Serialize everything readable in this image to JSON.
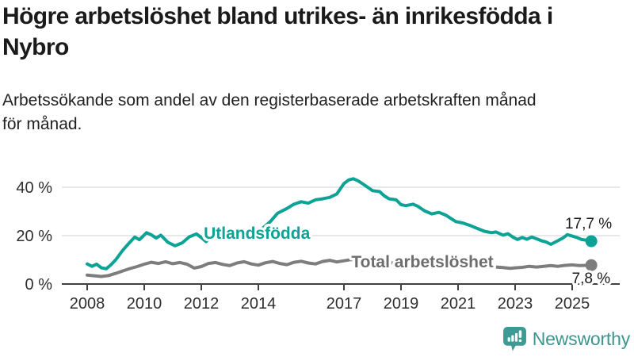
{
  "header": {
    "title": "Högre arbetslöshet bland utrikes- än inrikesfödda i\nNybro",
    "subtitle": "Arbetssökande som andel av den registerbaserade arbetskraften månad\nför månad."
  },
  "footer": {
    "brand": "Newsworthy"
  },
  "colors": {
    "accent_teal": "#0da296",
    "line_gray": "#7d7d7d",
    "label_gray": "#6d6d6d",
    "grid": "#d9d9d9",
    "axis": "#404040",
    "axis_text": "#2e2e2e",
    "value_text": "#1a1a1a",
    "logo_teal": "#3e9a94"
  },
  "chart_data": {
    "type": "line",
    "title": "Högre arbetslöshet bland utrikes- än inrikesfödda i Nybro",
    "subtitle": "Arbetssökande som andel av den registerbaserade arbetskraften månad för månad.",
    "ylabel": "",
    "xlabel": "",
    "y_ticks": [
      0,
      20,
      40
    ],
    "y_tick_suffix": " %",
    "x_ticks": [
      2008,
      2010,
      2012,
      2014,
      2017,
      2019,
      2021,
      2023,
      2025
    ],
    "xlim": [
      2007.1,
      2026.7
    ],
    "ylim": [
      0,
      46
    ],
    "grid": "horizontal",
    "legend_position": "inline-labels",
    "series": [
      {
        "name": "Utlandsfödda",
        "color": "#0da296",
        "end_label": "17,7 %",
        "end_value": 17.7,
        "label_anchor": {
          "year": 2013.95,
          "value": 21.0
        },
        "end_label_offset": {
          "dx": 26,
          "dy": -16
        },
        "points": [
          [
            2008.0,
            8.3
          ],
          [
            2008.17,
            7.3
          ],
          [
            2008.33,
            8.2
          ],
          [
            2008.5,
            6.7
          ],
          [
            2008.67,
            6.3
          ],
          [
            2008.83,
            7.9
          ],
          [
            2009.0,
            10.0
          ],
          [
            2009.25,
            14.0
          ],
          [
            2009.5,
            17.3
          ],
          [
            2009.67,
            19.4
          ],
          [
            2009.83,
            18.3
          ],
          [
            2010.08,
            21.2
          ],
          [
            2010.25,
            20.3
          ],
          [
            2010.42,
            19.0
          ],
          [
            2010.58,
            20.2
          ],
          [
            2010.83,
            17.2
          ],
          [
            2011.08,
            15.8
          ],
          [
            2011.33,
            17.0
          ],
          [
            2011.58,
            19.5
          ],
          [
            2011.83,
            20.7
          ],
          [
            2012.0,
            19.2
          ],
          [
            2012.17,
            17.5
          ],
          [
            2012.42,
            20.4
          ],
          [
            2012.67,
            21.0
          ],
          [
            2012.92,
            20.4
          ],
          [
            2013.17,
            21.2
          ],
          [
            2013.42,
            20.7
          ],
          [
            2013.67,
            21.3
          ],
          [
            2013.92,
            21.8
          ],
          [
            2014.17,
            23.2
          ],
          [
            2014.42,
            25.8
          ],
          [
            2014.67,
            29.2
          ],
          [
            2015.0,
            31.2
          ],
          [
            2015.25,
            33.0
          ],
          [
            2015.5,
            34.0
          ],
          [
            2015.75,
            33.4
          ],
          [
            2016.0,
            34.8
          ],
          [
            2016.25,
            35.2
          ],
          [
            2016.5,
            35.8
          ],
          [
            2016.75,
            37.2
          ],
          [
            2017.0,
            41.5
          ],
          [
            2017.17,
            43.0
          ],
          [
            2017.33,
            43.5
          ],
          [
            2017.5,
            42.6
          ],
          [
            2017.67,
            41.3
          ],
          [
            2017.83,
            40.0
          ],
          [
            2018.0,
            38.6
          ],
          [
            2018.25,
            38.2
          ],
          [
            2018.42,
            36.4
          ],
          [
            2018.58,
            35.2
          ],
          [
            2018.83,
            34.8
          ],
          [
            2019.0,
            32.8
          ],
          [
            2019.17,
            32.4
          ],
          [
            2019.42,
            33.0
          ],
          [
            2019.58,
            32.2
          ],
          [
            2019.83,
            30.2
          ],
          [
            2020.08,
            29.0
          ],
          [
            2020.33,
            29.6
          ],
          [
            2020.58,
            28.4
          ],
          [
            2020.92,
            25.8
          ],
          [
            2021.17,
            25.2
          ],
          [
            2021.42,
            24.2
          ],
          [
            2021.67,
            23.0
          ],
          [
            2021.92,
            21.8
          ],
          [
            2022.17,
            21.2
          ],
          [
            2022.33,
            21.5
          ],
          [
            2022.58,
            20.2
          ],
          [
            2022.75,
            20.8
          ],
          [
            2022.92,
            19.4
          ],
          [
            2023.08,
            18.4
          ],
          [
            2023.25,
            19.2
          ],
          [
            2023.42,
            18.5
          ],
          [
            2023.58,
            19.4
          ],
          [
            2023.75,
            18.7
          ],
          [
            2023.92,
            17.9
          ],
          [
            2024.08,
            17.4
          ],
          [
            2024.25,
            16.4
          ],
          [
            2024.5,
            17.9
          ],
          [
            2024.67,
            19.0
          ],
          [
            2024.83,
            20.4
          ],
          [
            2025.0,
            19.8
          ],
          [
            2025.17,
            19.2
          ],
          [
            2025.33,
            18.4
          ],
          [
            2025.5,
            18.1
          ],
          [
            2025.67,
            17.7
          ]
        ]
      },
      {
        "name": "Total arbetslöshet",
        "color": "#7d7d7d",
        "label_color": "#6d6d6d",
        "end_label": "7,8 %",
        "end_value": 7.8,
        "label_anchor": {
          "year": 2019.75,
          "value": 9.2
        },
        "end_label_offset": {
          "dx": 24,
          "dy": 23
        },
        "points": [
          [
            2008.0,
            3.7
          ],
          [
            2008.25,
            3.4
          ],
          [
            2008.5,
            3.1
          ],
          [
            2008.75,
            3.5
          ],
          [
            2009.0,
            4.4
          ],
          [
            2009.25,
            5.4
          ],
          [
            2009.5,
            6.4
          ],
          [
            2009.75,
            7.2
          ],
          [
            2010.0,
            8.2
          ],
          [
            2010.25,
            9.0
          ],
          [
            2010.5,
            8.5
          ],
          [
            2010.75,
            9.2
          ],
          [
            2011.0,
            8.4
          ],
          [
            2011.25,
            8.9
          ],
          [
            2011.5,
            8.2
          ],
          [
            2011.75,
            6.6
          ],
          [
            2012.0,
            7.2
          ],
          [
            2012.25,
            8.5
          ],
          [
            2012.5,
            8.9
          ],
          [
            2012.75,
            8.1
          ],
          [
            2013.0,
            7.6
          ],
          [
            2013.25,
            8.7
          ],
          [
            2013.5,
            9.2
          ],
          [
            2013.75,
            8.3
          ],
          [
            2014.0,
            7.8
          ],
          [
            2014.25,
            8.8
          ],
          [
            2014.5,
            9.3
          ],
          [
            2014.75,
            8.5
          ],
          [
            2015.0,
            8.0
          ],
          [
            2015.25,
            9.0
          ],
          [
            2015.5,
            9.4
          ],
          [
            2015.75,
            8.7
          ],
          [
            2016.0,
            8.3
          ],
          [
            2016.25,
            9.3
          ],
          [
            2016.5,
            9.8
          ],
          [
            2016.75,
            9.1
          ],
          [
            2017.0,
            9.6
          ],
          [
            2017.25,
            10.1
          ],
          [
            2017.5,
            9.7
          ],
          [
            2017.75,
            9.3
          ],
          [
            2018.0,
            8.9
          ],
          [
            2018.33,
            8.5
          ],
          [
            2018.67,
            8.8
          ],
          [
            2019.0,
            8.3
          ],
          [
            2019.33,
            8.0
          ],
          [
            2019.67,
            8.5
          ],
          [
            2020.0,
            8.9
          ],
          [
            2020.33,
            9.7
          ],
          [
            2020.67,
            9.3
          ],
          [
            2021.0,
            8.8
          ],
          [
            2021.33,
            8.4
          ],
          [
            2021.67,
            8.0
          ],
          [
            2022.0,
            7.4
          ],
          [
            2022.33,
            7.0
          ],
          [
            2022.58,
            6.8
          ],
          [
            2022.83,
            6.5
          ],
          [
            2023.0,
            6.7
          ],
          [
            2023.25,
            6.9
          ],
          [
            2023.5,
            7.3
          ],
          [
            2023.75,
            7.0
          ],
          [
            2024.0,
            7.3
          ],
          [
            2024.25,
            7.6
          ],
          [
            2024.5,
            7.3
          ],
          [
            2024.75,
            7.7
          ],
          [
            2025.0,
            7.9
          ],
          [
            2025.25,
            7.6
          ],
          [
            2025.5,
            7.7
          ],
          [
            2025.67,
            7.8
          ]
        ]
      }
    ]
  }
}
